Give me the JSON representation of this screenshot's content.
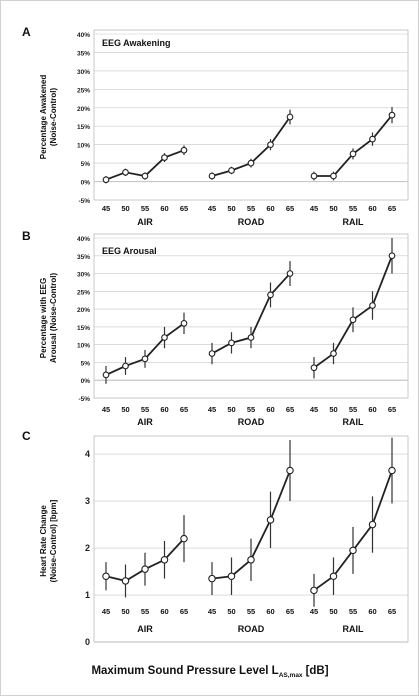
{
  "figure": {
    "xaxis_title_main": "Maximum Sound Pressure Level L",
    "xaxis_title_sub": "AS,max",
    "xaxis_title_unit": "[dB]"
  },
  "chart_data": [
    {
      "type": "line",
      "panel_letter": "A",
      "title": "EEG Awakening",
      "ylabel_line1": "Percentage Awakened",
      "ylabel_line2": "(Noise-Control)",
      "ylim": [
        -5,
        40
      ],
      "yticks": [
        "-5%",
        "0%",
        "5%",
        "10%",
        "15%",
        "20%",
        "25%",
        "30%",
        "35%",
        "40%"
      ],
      "x": [
        "45",
        "50",
        "55",
        "60",
        "65"
      ],
      "grid": true,
      "series": [
        {
          "name": "AIR",
          "values": [
            0.5,
            2.5,
            1.5,
            6.5,
            8.5
          ],
          "err": [
            1,
            1,
            1,
            1.2,
            1.3
          ]
        },
        {
          "name": "ROAD",
          "values": [
            1.5,
            3,
            5,
            10,
            17.5
          ],
          "err": [
            1,
            1,
            1.2,
            1.5,
            2
          ]
        },
        {
          "name": "RAIL",
          "values": [
            1.5,
            1.5,
            7.5,
            11.5,
            18
          ],
          "err": [
            1.2,
            1.2,
            1.5,
            1.8,
            2.2
          ]
        }
      ]
    },
    {
      "type": "line",
      "panel_letter": "B",
      "title": "EEG Arousal",
      "ylabel_line1": "Percentage with EEG",
      "ylabel_line2": "Arousal (Noise-Control)",
      "ylim": [
        -5,
        40
      ],
      "yticks": [
        "-5%",
        "0%",
        "5%",
        "10%",
        "15%",
        "20%",
        "25%",
        "30%",
        "35%",
        "40%"
      ],
      "x": [
        "45",
        "50",
        "55",
        "60",
        "65"
      ],
      "grid": true,
      "series": [
        {
          "name": "AIR",
          "values": [
            1.5,
            4,
            6,
            12,
            16
          ],
          "err": [
            2.5,
            2.5,
            2.5,
            3,
            3
          ]
        },
        {
          "name": "ROAD",
          "values": [
            7.5,
            10.5,
            12,
            24,
            30
          ],
          "err": [
            3,
            3,
            3,
            3.5,
            3.5
          ]
        },
        {
          "name": "RAIL",
          "values": [
            3.5,
            7.5,
            17,
            21,
            35
          ],
          "err": [
            3,
            3,
            3.5,
            4,
            5
          ]
        }
      ]
    },
    {
      "type": "line",
      "panel_letter": "C",
      "title": "",
      "ylabel_line1": "Heart Rate Change",
      "ylabel_line2": "(Noise-Control) [bpm]",
      "ylim": [
        0,
        4.3
      ],
      "yticks": [
        "0",
        "1",
        "2",
        "3",
        "4"
      ],
      "x": [
        "45",
        "50",
        "55",
        "60",
        "65"
      ],
      "grid": true,
      "series": [
        {
          "name": "AIR",
          "values": [
            1.4,
            1.3,
            1.55,
            1.75,
            2.2
          ],
          "err": [
            0.3,
            0.35,
            0.35,
            0.4,
            0.5
          ]
        },
        {
          "name": "ROAD",
          "values": [
            1.35,
            1.4,
            1.75,
            2.6,
            3.65
          ],
          "err": [
            0.35,
            0.4,
            0.45,
            0.6,
            0.65
          ]
        },
        {
          "name": "RAIL",
          "values": [
            1.1,
            1.4,
            1.95,
            2.5,
            3.65
          ],
          "err": [
            0.35,
            0.4,
            0.5,
            0.6,
            0.7
          ]
        }
      ]
    }
  ]
}
